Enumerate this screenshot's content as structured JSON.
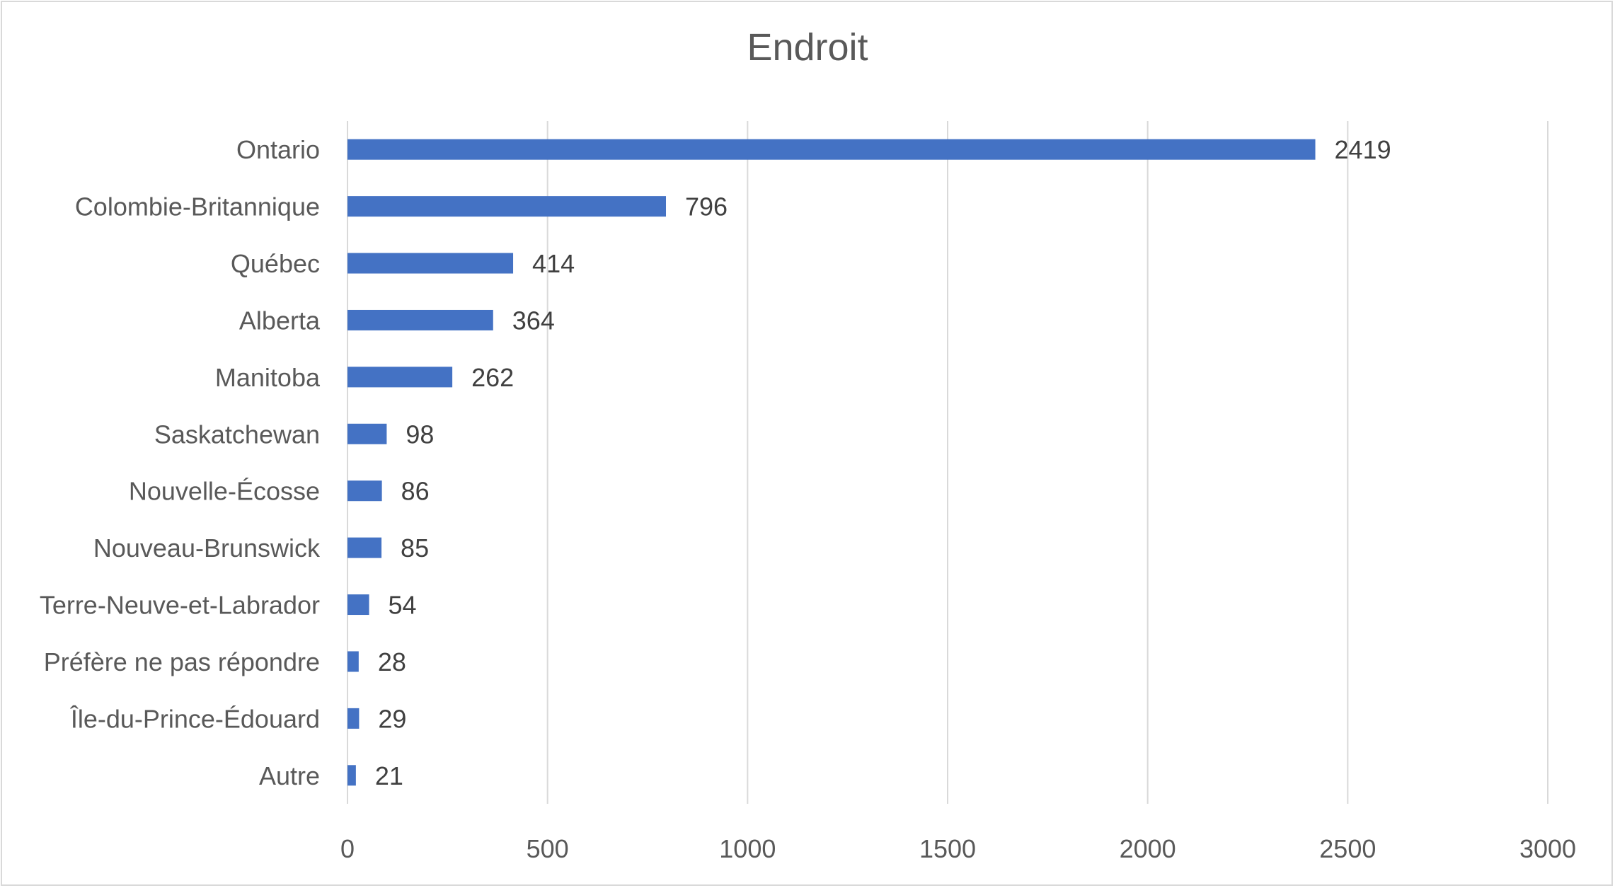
{
  "chart_data": {
    "type": "bar",
    "orientation": "horizontal",
    "title": "Endroit",
    "xlabel": "",
    "ylabel": "",
    "categories": [
      "Ontario",
      "Colombie-Britannique",
      "Québec",
      "Alberta",
      "Manitoba",
      "Saskatchewan",
      "Nouvelle-Écosse",
      "Nouveau-Brunswick",
      "Terre-Neuve-et-Labrador",
      "Préfère ne pas répondre",
      "Île-du-Prince-Édouard",
      "Autre"
    ],
    "values": [
      2419,
      796,
      414,
      364,
      262,
      98,
      86,
      85,
      54,
      28,
      29,
      21
    ],
    "xlim": [
      0,
      3000
    ],
    "xticks": [
      0,
      500,
      1000,
      1500,
      2000,
      2500,
      3000
    ],
    "grid": true,
    "legend": "none",
    "data_labels": true,
    "bar_color": "#4472c4"
  }
}
